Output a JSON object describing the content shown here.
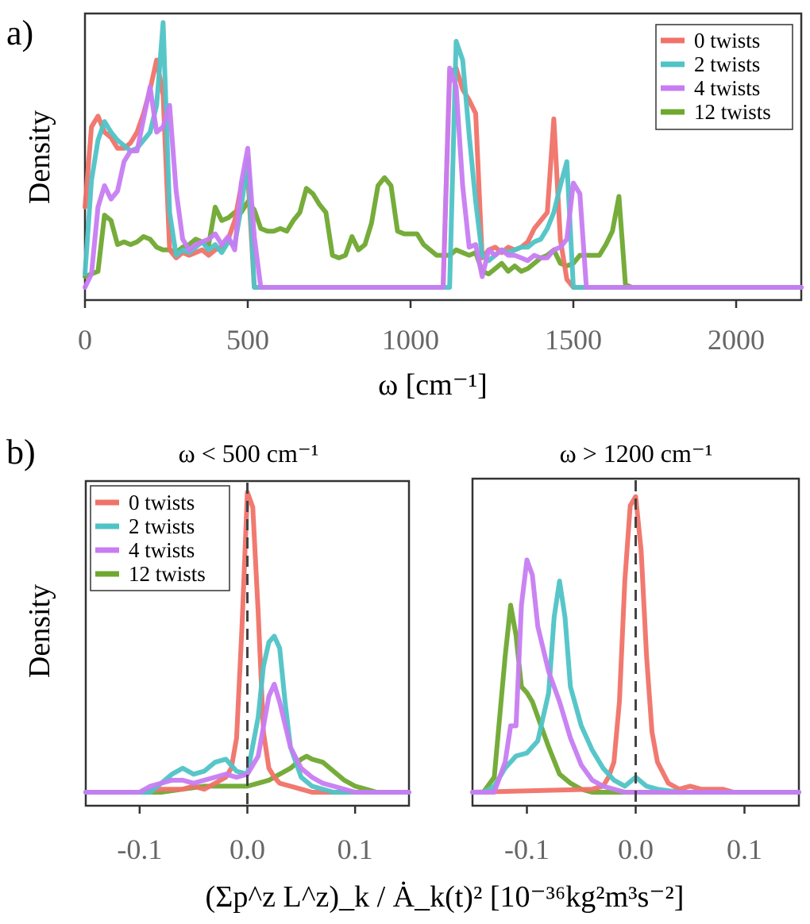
{
  "colors": {
    "0 twists": "#f07268",
    "2 twists": "#4fc3c6",
    "4 twists": "#c77cf2",
    "12 twists": "#6fa82f"
  },
  "chart_data": [
    {
      "panel": "a)",
      "type": "line",
      "title": "",
      "xlabel": "ω [cm⁻¹]",
      "ylabel": "Density",
      "xlim": [
        0,
        2200
      ],
      "ylim": [
        0,
        1.0
      ],
      "xticks": [
        0,
        500,
        1000,
        1500,
        2000
      ],
      "legend": "top-right",
      "series": [
        {
          "name": "0 twists",
          "x": [
            0,
            20,
            40,
            60,
            80,
            100,
            120,
            140,
            160,
            180,
            200,
            220,
            240,
            260,
            280,
            300,
            320,
            340,
            360,
            380,
            400,
            420,
            440,
            460,
            480,
            500,
            520,
            540,
            1080,
            1100,
            1120,
            1140,
            1160,
            1180,
            1200,
            1220,
            1240,
            1260,
            1280,
            1300,
            1320,
            1340,
            1360,
            1380,
            1400,
            1420,
            1440,
            1460,
            1480,
            1500,
            1520,
            2200
          ],
          "y": [
            0.3,
            0.6,
            0.64,
            0.58,
            0.56,
            0.52,
            0.52,
            0.54,
            0.58,
            0.65,
            0.74,
            0.85,
            0.72,
            0.14,
            0.11,
            0.13,
            0.12,
            0.13,
            0.14,
            0.12,
            0.14,
            0.15,
            0.18,
            0.25,
            0.38,
            0.42,
            0.0,
            0.0,
            0.0,
            0.0,
            0.8,
            0.82,
            0.74,
            0.7,
            0.65,
            0.11,
            0.14,
            0.15,
            0.13,
            0.15,
            0.14,
            0.15,
            0.17,
            0.22,
            0.25,
            0.28,
            0.63,
            0.18,
            0.03,
            0.0,
            0.0,
            0.0
          ]
        },
        {
          "name": "2 twists",
          "x": [
            0,
            20,
            40,
            60,
            80,
            100,
            120,
            140,
            160,
            180,
            200,
            220,
            240,
            260,
            280,
            300,
            320,
            340,
            360,
            380,
            400,
            420,
            440,
            460,
            480,
            500,
            520,
            1100,
            1120,
            1140,
            1160,
            1180,
            1200,
            1220,
            1240,
            1260,
            1280,
            1300,
            1320,
            1340,
            1360,
            1380,
            1400,
            1420,
            1440,
            1460,
            1480,
            1500,
            1520,
            2200
          ],
          "y": [
            0.05,
            0.4,
            0.55,
            0.62,
            0.58,
            0.55,
            0.53,
            0.51,
            0.52,
            0.55,
            0.58,
            0.68,
            0.99,
            0.28,
            0.12,
            0.14,
            0.13,
            0.15,
            0.17,
            0.14,
            0.16,
            0.13,
            0.17,
            0.16,
            0.3,
            0.48,
            0.0,
            0.0,
            0.0,
            0.92,
            0.85,
            0.57,
            0.32,
            0.12,
            0.1,
            0.12,
            0.14,
            0.13,
            0.14,
            0.15,
            0.15,
            0.17,
            0.18,
            0.22,
            0.28,
            0.38,
            0.47,
            0.0,
            0.0,
            0.0
          ]
        },
        {
          "name": "4 twists",
          "x": [
            0,
            20,
            40,
            60,
            80,
            100,
            120,
            140,
            160,
            180,
            200,
            220,
            240,
            260,
            280,
            300,
            320,
            340,
            360,
            380,
            400,
            420,
            440,
            460,
            480,
            500,
            520,
            540,
            1080,
            1100,
            1120,
            1140,
            1160,
            1180,
            1200,
            1220,
            1240,
            1260,
            1280,
            1300,
            1320,
            1340,
            1360,
            1380,
            1400,
            1420,
            1440,
            1460,
            1480,
            1500,
            1520,
            1540,
            2200
          ],
          "y": [
            0.0,
            0.05,
            0.3,
            0.38,
            0.33,
            0.36,
            0.47,
            0.51,
            0.51,
            0.63,
            0.75,
            0.58,
            0.6,
            0.68,
            0.36,
            0.18,
            0.14,
            0.16,
            0.17,
            0.18,
            0.2,
            0.16,
            0.19,
            0.14,
            0.39,
            0.52,
            0.19,
            0.0,
            0.0,
            0.0,
            0.82,
            0.75,
            0.38,
            0.15,
            0.16,
            0.04,
            0.14,
            0.12,
            0.14,
            0.12,
            0.12,
            0.11,
            0.1,
            0.12,
            0.11,
            0.11,
            0.14,
            0.15,
            0.18,
            0.39,
            0.35,
            0.0,
            0.0
          ]
        },
        {
          "name": "12 twists",
          "x": [
            0,
            20,
            40,
            60,
            80,
            100,
            120,
            140,
            160,
            180,
            200,
            220,
            240,
            260,
            280,
            300,
            320,
            340,
            360,
            380,
            400,
            420,
            440,
            460,
            480,
            500,
            520,
            540,
            560,
            580,
            600,
            620,
            640,
            660,
            680,
            700,
            720,
            740,
            760,
            780,
            800,
            820,
            840,
            860,
            880,
            900,
            920,
            940,
            960,
            980,
            1000,
            1020,
            1040,
            1060,
            1080,
            1100,
            1120,
            1140,
            1160,
            1180,
            1200,
            1220,
            1240,
            1260,
            1280,
            1300,
            1320,
            1340,
            1360,
            1380,
            1400,
            1420,
            1440,
            1460,
            1480,
            1500,
            1520,
            1540,
            1560,
            1580,
            1600,
            1620,
            1640,
            1660,
            1680,
            1700,
            2200
          ],
          "y": [
            0.04,
            0.05,
            0.06,
            0.27,
            0.25,
            0.16,
            0.17,
            0.16,
            0.17,
            0.19,
            0.18,
            0.15,
            0.14,
            0.14,
            0.13,
            0.15,
            0.16,
            0.18,
            0.17,
            0.16,
            0.3,
            0.25,
            0.26,
            0.28,
            0.28,
            0.32,
            0.29,
            0.22,
            0.21,
            0.21,
            0.22,
            0.21,
            0.25,
            0.28,
            0.37,
            0.35,
            0.31,
            0.28,
            0.12,
            0.11,
            0.12,
            0.19,
            0.14,
            0.16,
            0.24,
            0.38,
            0.41,
            0.38,
            0.21,
            0.2,
            0.2,
            0.2,
            0.16,
            0.14,
            0.12,
            0.12,
            0.12,
            0.14,
            0.13,
            0.12,
            0.13,
            0.06,
            0.05,
            0.07,
            0.09,
            0.06,
            0.08,
            0.06,
            0.07,
            0.09,
            0.11,
            0.12,
            0.14,
            0.09,
            0.08,
            0.09,
            0.12,
            0.12,
            0.12,
            0.12,
            0.16,
            0.21,
            0.34,
            0.01,
            0.0,
            0.0,
            0.0
          ]
        }
      ]
    },
    {
      "panel": "b)",
      "type": "line",
      "title": "ω < 500 cm⁻¹",
      "xlabel": "(Σp^z L^z)_k / Ȧ_k(t)²  [10⁻³⁶kg²m³s⁻²]",
      "ylabel": "Density",
      "xlim": [
        -0.15,
        0.15
      ],
      "ylim": [
        0,
        1.0
      ],
      "xticks": [
        -0.1,
        0.0,
        0.1
      ],
      "vline": 0.0,
      "legend": "top-left",
      "series": [
        {
          "name": "0 twists",
          "x": [
            -0.15,
            -0.1,
            -0.08,
            -0.06,
            -0.05,
            -0.04,
            -0.03,
            -0.02,
            -0.015,
            -0.01,
            -0.005,
            0.0,
            0.005,
            0.01,
            0.015,
            0.02,
            0.025,
            0.03,
            0.04,
            0.05,
            0.06,
            0.08,
            0.15
          ],
          "y": [
            0.0,
            0.0,
            0.01,
            0.01,
            0.02,
            0.01,
            0.03,
            0.05,
            0.08,
            0.18,
            0.55,
            1.0,
            0.95,
            0.6,
            0.2,
            0.08,
            0.05,
            0.03,
            0.02,
            0.01,
            0.0,
            0.0,
            0.0
          ]
        },
        {
          "name": "2 twists",
          "x": [
            -0.15,
            -0.1,
            -0.09,
            -0.08,
            -0.07,
            -0.06,
            -0.05,
            -0.04,
            -0.03,
            -0.02,
            -0.01,
            0.0,
            0.01,
            0.015,
            0.02,
            0.025,
            0.03,
            0.035,
            0.04,
            0.05,
            0.06,
            0.08,
            0.15
          ],
          "y": [
            0.0,
            0.0,
            0.0,
            0.03,
            0.06,
            0.08,
            0.06,
            0.07,
            0.1,
            0.11,
            0.07,
            0.06,
            0.25,
            0.42,
            0.5,
            0.52,
            0.48,
            0.3,
            0.15,
            0.05,
            0.02,
            0.0,
            0.0
          ]
        },
        {
          "name": "4 twists",
          "x": [
            -0.15,
            -0.1,
            -0.09,
            -0.08,
            -0.07,
            -0.06,
            -0.05,
            -0.04,
            -0.03,
            -0.02,
            -0.01,
            0.0,
            0.01,
            0.02,
            0.025,
            0.03,
            0.04,
            0.05,
            0.06,
            0.07,
            0.08,
            0.1,
            0.15
          ],
          "y": [
            0.0,
            0.0,
            0.02,
            0.03,
            0.04,
            0.04,
            0.03,
            0.04,
            0.05,
            0.06,
            0.05,
            0.06,
            0.12,
            0.32,
            0.36,
            0.3,
            0.15,
            0.08,
            0.05,
            0.03,
            0.02,
            0.0,
            0.0
          ]
        },
        {
          "name": "12 twists",
          "x": [
            -0.15,
            -0.08,
            -0.06,
            -0.04,
            -0.02,
            0.0,
            0.01,
            0.02,
            0.03,
            0.04,
            0.05,
            0.055,
            0.06,
            0.07,
            0.08,
            0.09,
            0.1,
            0.11,
            0.12,
            0.15
          ],
          "y": [
            0.0,
            0.0,
            0.01,
            0.02,
            0.02,
            0.02,
            0.03,
            0.04,
            0.06,
            0.08,
            0.11,
            0.12,
            0.11,
            0.1,
            0.07,
            0.04,
            0.02,
            0.01,
            0.0,
            0.0
          ]
        }
      ]
    },
    {
      "panel": "",
      "type": "line",
      "title": "ω > 1200 cm⁻¹",
      "xlabel": "",
      "ylabel": "",
      "xlim": [
        -0.15,
        0.15
      ],
      "ylim": [
        0,
        1.0
      ],
      "xticks": [
        -0.1,
        0.0,
        0.1
      ],
      "vline": 0.0,
      "series": [
        {
          "name": "0 twists",
          "x": [
            -0.15,
            -0.04,
            -0.03,
            -0.025,
            -0.02,
            -0.015,
            -0.01,
            -0.005,
            0.0,
            0.005,
            0.01,
            0.015,
            0.02,
            0.03,
            0.04,
            0.05,
            0.06,
            0.07,
            0.08,
            0.09,
            0.1,
            0.15
          ],
          "y": [
            0.0,
            0.01,
            0.02,
            0.05,
            0.1,
            0.3,
            0.7,
            0.95,
            0.98,
            0.8,
            0.45,
            0.2,
            0.1,
            0.03,
            0.01,
            0.02,
            0.01,
            0.01,
            0.01,
            0.0,
            0.0,
            0.0
          ]
        },
        {
          "name": "2 twists",
          "x": [
            -0.15,
            -0.14,
            -0.13,
            -0.12,
            -0.11,
            -0.1,
            -0.09,
            -0.08,
            -0.075,
            -0.07,
            -0.065,
            -0.06,
            -0.05,
            -0.04,
            -0.03,
            -0.02,
            -0.01,
            0.0,
            0.01,
            0.02,
            0.04,
            0.15
          ],
          "y": [
            0.0,
            0.0,
            0.02,
            0.08,
            0.12,
            0.13,
            0.17,
            0.33,
            0.58,
            0.7,
            0.58,
            0.35,
            0.22,
            0.14,
            0.08,
            0.04,
            0.02,
            0.05,
            0.02,
            0.01,
            0.0,
            0.0
          ]
        },
        {
          "name": "4 twists",
          "x": [
            -0.15,
            -0.13,
            -0.12,
            -0.115,
            -0.11,
            -0.105,
            -0.1,
            -0.095,
            -0.09,
            -0.08,
            -0.07,
            -0.06,
            -0.05,
            -0.04,
            -0.03,
            -0.02,
            -0.01,
            0.0,
            0.15
          ],
          "y": [
            0.0,
            0.0,
            0.1,
            0.22,
            0.22,
            0.62,
            0.77,
            0.72,
            0.55,
            0.4,
            0.3,
            0.18,
            0.09,
            0.04,
            0.02,
            0.01,
            0.0,
            0.0,
            0.0
          ]
        },
        {
          "name": "12 twists",
          "x": [
            -0.15,
            -0.14,
            -0.13,
            -0.12,
            -0.115,
            -0.11,
            -0.105,
            -0.1,
            -0.095,
            -0.09,
            -0.08,
            -0.07,
            -0.06,
            -0.05,
            -0.04,
            -0.03,
            0.15
          ],
          "y": [
            0.0,
            0.0,
            0.05,
            0.45,
            0.62,
            0.52,
            0.35,
            0.33,
            0.3,
            0.25,
            0.15,
            0.06,
            0.03,
            0.01,
            0.0,
            0.0,
            0.0
          ]
        }
      ]
    }
  ]
}
